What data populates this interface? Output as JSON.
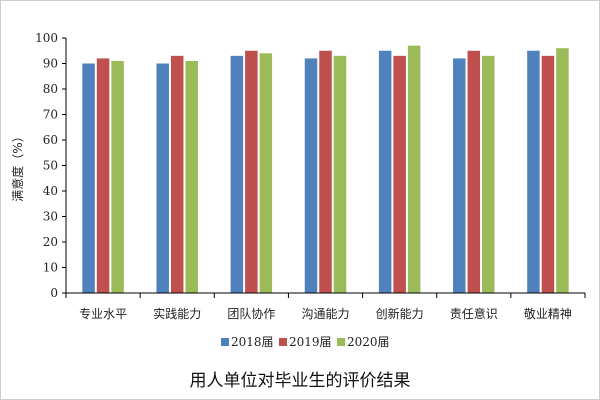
{
  "chart_data": {
    "type": "bar",
    "title": "用人单位对毕业生的评价结果",
    "xlabel": "",
    "ylabel": "满意度（%）",
    "ylim": [
      0,
      100
    ],
    "yticks": [
      "0",
      "10",
      "20",
      "30",
      "40",
      "50",
      "60",
      "70",
      "80",
      "90",
      "100"
    ],
    "grid": false,
    "legend_position": "bottom",
    "categories": [
      "专业水平",
      "实践能力",
      "团队协作",
      "沟通能力",
      "创新能力",
      "责任意识",
      "敬业精神"
    ],
    "series": [
      {
        "name": "2018届",
        "color": "#4f81bd",
        "values": [
          90,
          90,
          93,
          92,
          95,
          92,
          95
        ]
      },
      {
        "name": "2019届",
        "color": "#c0504d",
        "values": [
          92,
          93,
          95,
          95,
          93,
          95,
          93
        ]
      },
      {
        "name": "2020届",
        "color": "#9bbb59",
        "values": [
          91,
          91,
          94,
          93,
          97,
          93,
          96
        ]
      }
    ]
  }
}
